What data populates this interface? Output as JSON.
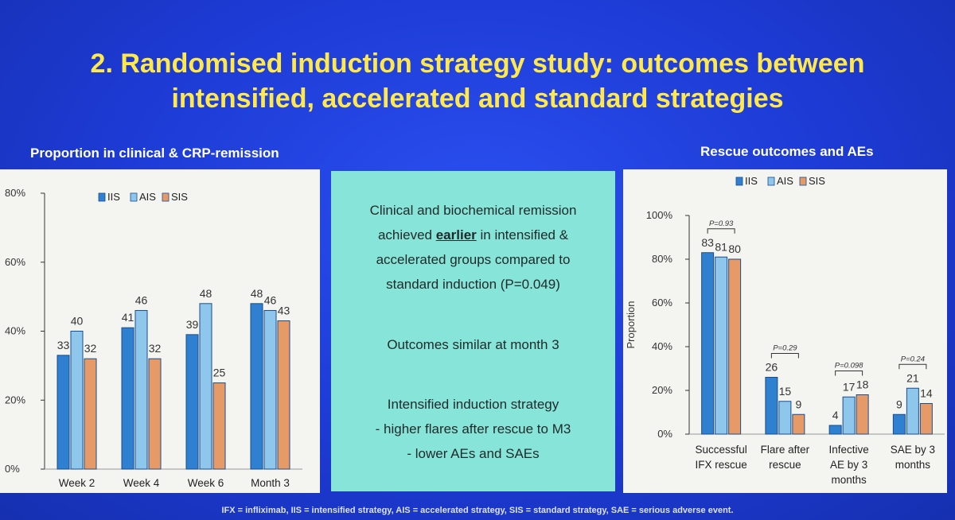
{
  "title_line1": "2. Randomised induction strategy study: outcomes between",
  "title_line2": "intensified, accelerated and standard strategies",
  "left_heading": "Proportion in clinical & CRP-remission",
  "right_heading": "Rescue outcomes and AEs",
  "middle": {
    "line1": "Clinical and biochemical remission",
    "line2_pre": "achieved ",
    "line2_emph": "earlier",
    "line2_post": " in intensified &",
    "line3": "accelerated groups compared to",
    "line4": "standard induction (P=0.049)",
    "line5": "Outcomes similar at month 3",
    "line6": "Intensified induction strategy",
    "line7": "- higher flares after rescue to M3",
    "line8": "- lower AEs and SAEs"
  },
  "footer": "IFX = infliximab, IIS = intensified strategy, AIS = accelerated strategy, SIS = standard strategy, SAE = serious adverse event.",
  "colors": {
    "IIS": "#2f80d0",
    "AIS": "#8ec6ec",
    "SIS": "#e69a68"
  },
  "chart_data": [
    {
      "type": "bar",
      "title": "Proportion in clinical & CRP-remission",
      "categories": [
        "Week 2",
        "Week 4",
        "Week 6",
        "Month 3"
      ],
      "series": [
        {
          "name": "IIS",
          "values": [
            33,
            41,
            39,
            48
          ]
        },
        {
          "name": "AIS",
          "values": [
            40,
            46,
            48,
            46
          ]
        },
        {
          "name": "SIS",
          "values": [
            32,
            32,
            25,
            43
          ]
        }
      ],
      "yticks": [
        "0%",
        "20%",
        "40%",
        "60%",
        "80%"
      ],
      "ylim": [
        0,
        80
      ],
      "legend": "top"
    },
    {
      "type": "bar",
      "title": "Rescue outcomes and AEs",
      "categories": [
        [
          "Successful",
          "IFX rescue"
        ],
        [
          "Flare after",
          "rescue"
        ],
        [
          "Infective",
          "AE by 3",
          "months"
        ],
        [
          "SAE by 3",
          "months"
        ]
      ],
      "series": [
        {
          "name": "IIS",
          "values": [
            83,
            26,
            4,
            9
          ]
        },
        {
          "name": "AIS",
          "values": [
            81,
            15,
            17,
            21
          ]
        },
        {
          "name": "SIS",
          "values": [
            80,
            9,
            18,
            14
          ]
        }
      ],
      "pvalues": [
        "P=0.93",
        "P=0.29",
        "P=0.098",
        "P=0.24"
      ],
      "ylabel": "Proportion",
      "yticks": [
        "0%",
        "20%",
        "40%",
        "60%",
        "80%",
        "100%"
      ],
      "ylim": [
        0,
        100
      ],
      "legend": "top"
    }
  ]
}
